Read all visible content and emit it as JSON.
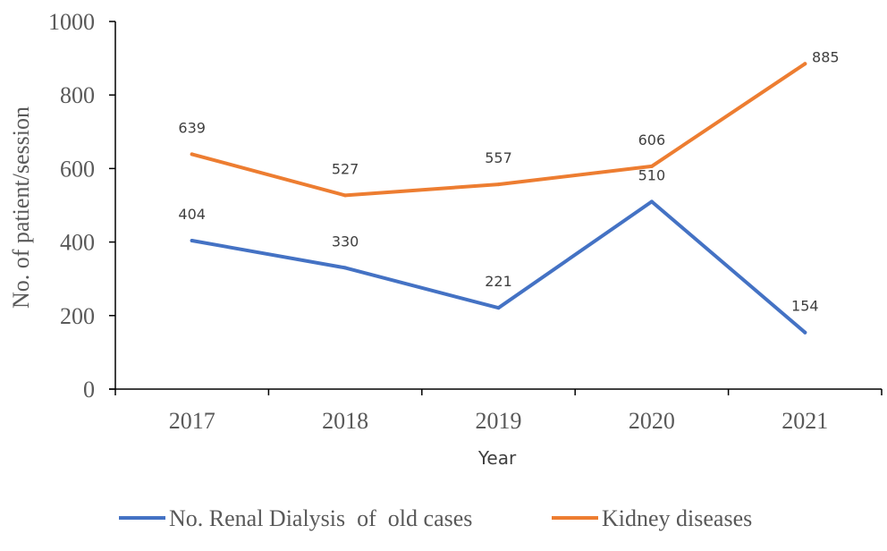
{
  "chart_data": {
    "type": "line",
    "x": [
      "2017",
      "2018",
      "2019",
      "2020",
      "2021"
    ],
    "xlabel": "Year",
    "ylabel": "No. of patient/session",
    "ylim": [
      0,
      1000
    ],
    "yticks": [
      "0",
      "200",
      "400",
      "600",
      "800",
      "1000"
    ],
    "grid": false,
    "legend_position": "bottom",
    "series": [
      {
        "name": "No. Renal Dialysis  of  old cases",
        "values": [
          404,
          330,
          221,
          510,
          154
        ],
        "labels": [
          "404",
          "330",
          "221",
          "510",
          "154"
        ],
        "color": "#4472C4"
      },
      {
        "name": "Kidney diseases",
        "values": [
          639,
          527,
          557,
          606,
          885
        ],
        "labels": [
          "639",
          "527",
          "557",
          "606",
          "885"
        ],
        "color": "#ED7D31"
      }
    ]
  }
}
